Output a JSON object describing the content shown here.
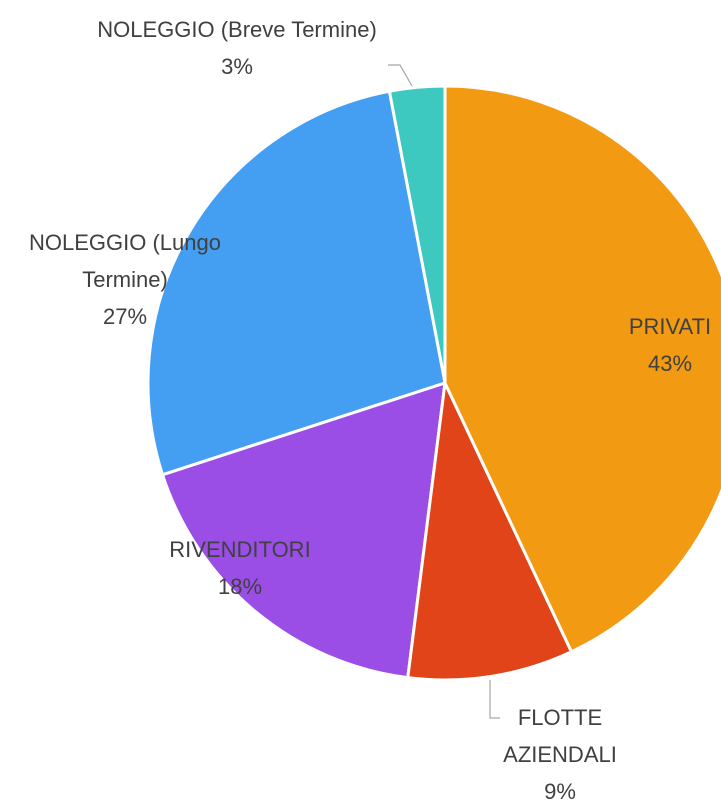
{
  "chart_data": {
    "type": "pie",
    "categories": [
      "PRIVATI",
      "FLOTTE AZIENDALI",
      "RIVENDITORI",
      "NOLEGGIO (Lungo Termine)",
      "NOLEGGIO (Breve Termine)"
    ],
    "values": [
      43,
      9,
      18,
      27,
      3
    ],
    "value_labels": [
      "43%",
      "9%",
      "18%",
      "27%",
      "3%"
    ],
    "colors": [
      "#f29a12",
      "#e04418",
      "#9b4ee6",
      "#449ff2",
      "#3ec9c0"
    ]
  }
}
